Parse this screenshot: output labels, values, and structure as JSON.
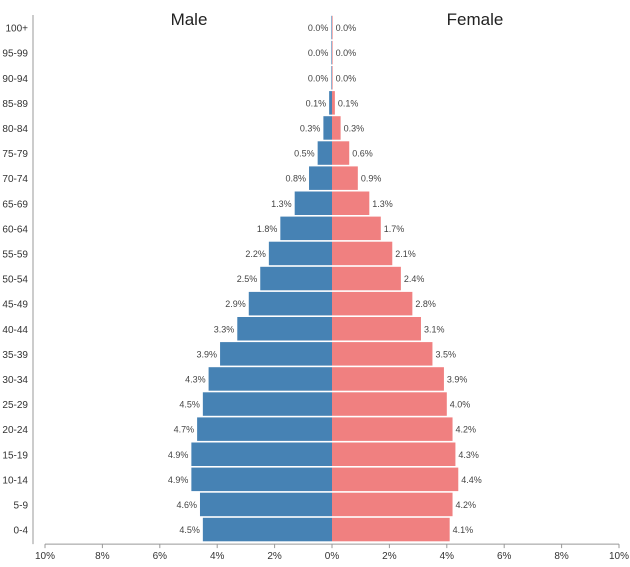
{
  "chart_data": {
    "type": "bar",
    "subtype": "population-pyramid",
    "orientation": "horizontal",
    "categories": [
      "100+",
      "95-99",
      "90-94",
      "85-89",
      "80-84",
      "75-79",
      "70-74",
      "65-69",
      "60-64",
      "55-59",
      "50-54",
      "45-49",
      "40-44",
      "35-39",
      "30-34",
      "25-29",
      "20-24",
      "15-19",
      "10-14",
      "5-9",
      "0-4"
    ],
    "series": [
      {
        "name": "Male",
        "color": "#4682b4",
        "values": [
          0.0,
          0.0,
          0.0,
          0.1,
          0.3,
          0.5,
          0.8,
          1.3,
          1.8,
          2.2,
          2.5,
          2.9,
          3.3,
          3.9,
          4.3,
          4.5,
          4.7,
          4.9,
          4.9,
          4.6,
          4.5
        ],
        "labels": [
          "0.0%",
          "0.0%",
          "0.0%",
          "0.1%",
          "0.3%",
          "0.5%",
          "0.8%",
          "1.3%",
          "1.8%",
          "2.2%",
          "2.5%",
          "2.9%",
          "3.3%",
          "3.9%",
          "4.3%",
          "4.5%",
          "4.7%",
          "4.9%",
          "4.9%",
          "4.6%",
          "4.5%"
        ]
      },
      {
        "name": "Female",
        "color": "#f08080",
        "values": [
          0.0,
          0.0,
          0.0,
          0.1,
          0.3,
          0.6,
          0.9,
          1.3,
          1.7,
          2.1,
          2.4,
          2.8,
          3.1,
          3.5,
          3.9,
          4.0,
          4.2,
          4.3,
          4.4,
          4.2,
          4.1
        ],
        "labels": [
          "0.0%",
          "0.0%",
          "0.0%",
          "0.1%",
          "0.3%",
          "0.6%",
          "0.9%",
          "1.3%",
          "1.7%",
          "2.1%",
          "2.4%",
          "2.8%",
          "3.1%",
          "3.5%",
          "3.9%",
          "4.0%",
          "4.2%",
          "4.3%",
          "4.4%",
          "4.2%",
          "4.1%"
        ]
      }
    ],
    "x_ticks": [
      "10%",
      "8%",
      "6%",
      "4%",
      "2%",
      "0%",
      "2%",
      "4%",
      "6%",
      "8%",
      "10%"
    ],
    "xlim": [
      -10,
      10
    ],
    "grid": false
  }
}
